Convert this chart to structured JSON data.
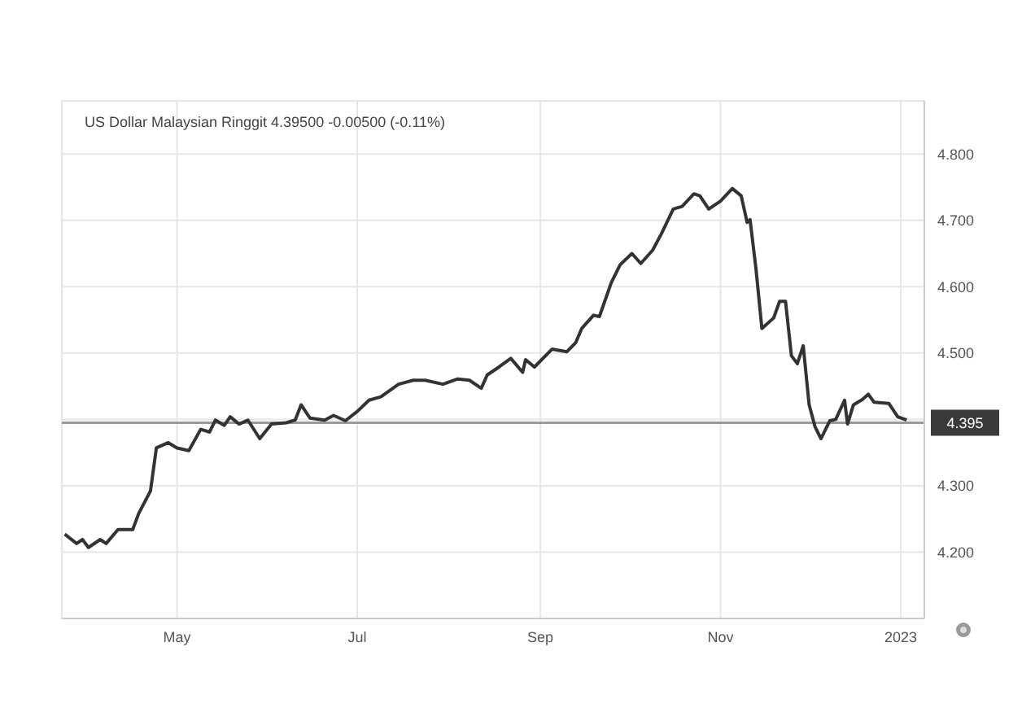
{
  "chart_data": {
    "type": "line",
    "title": "US Dollar Malaysian Ringgit 4.39500  -0.00500 (-0.11%)",
    "x": [
      "2022-03-24",
      "2022-03-28",
      "2022-03-30",
      "2022-04-01",
      "2022-04-05",
      "2022-04-07",
      "2022-04-11",
      "2022-04-16",
      "2022-04-18",
      "2022-04-22",
      "2022-04-24",
      "2022-04-28",
      "2022-05-01",
      "2022-05-05",
      "2022-05-09",
      "2022-05-12",
      "2022-05-14",
      "2022-05-17",
      "2022-05-19",
      "2022-05-22",
      "2022-05-25",
      "2022-05-29",
      "2022-06-02",
      "2022-06-07",
      "2022-06-10",
      "2022-06-12",
      "2022-06-15",
      "2022-06-20",
      "2022-06-23",
      "2022-06-27",
      "2022-07-01",
      "2022-07-05",
      "2022-07-09",
      "2022-07-15",
      "2022-07-20",
      "2022-07-24",
      "2022-07-30",
      "2022-08-04",
      "2022-08-08",
      "2022-08-12",
      "2022-08-14",
      "2022-08-18",
      "2022-08-22",
      "2022-08-26",
      "2022-08-27",
      "2022-08-30",
      "2022-09-05",
      "2022-09-10",
      "2022-09-13",
      "2022-09-15",
      "2022-09-19",
      "2022-09-21",
      "2022-09-25",
      "2022-09-28",
      "2022-10-02",
      "2022-10-05",
      "2022-10-09",
      "2022-10-12",
      "2022-10-16",
      "2022-10-19",
      "2022-10-23",
      "2022-10-25",
      "2022-10-28",
      "2022-11-01",
      "2022-11-05",
      "2022-11-08",
      "2022-11-10",
      "2022-11-11",
      "2022-11-13",
      "2022-11-15",
      "2022-11-19",
      "2022-11-21",
      "2022-11-23",
      "2022-11-25",
      "2022-11-27",
      "2022-11-29",
      "2022-12-01",
      "2022-12-03",
      "2022-12-05",
      "2022-12-08",
      "2022-12-10",
      "2022-12-13",
      "2022-12-14",
      "2022-12-16",
      "2022-12-19",
      "2022-12-21",
      "2022-12-23",
      "2022-12-28",
      "2022-12-31",
      "2023-01-03"
    ],
    "series": [
      {
        "color": "#333333",
        "values": [
          4.227,
          4.213,
          4.219,
          4.207,
          4.219,
          4.213,
          4.234,
          4.234,
          4.258,
          4.292,
          4.357,
          4.365,
          4.357,
          4.353,
          4.385,
          4.381,
          4.399,
          4.391,
          4.404,
          4.393,
          4.399,
          4.371,
          4.393,
          4.395,
          4.399,
          4.422,
          4.402,
          4.399,
          4.406,
          4.398,
          4.412,
          4.429,
          4.434,
          4.453,
          4.459,
          4.459,
          4.453,
          4.461,
          4.459,
          4.447,
          4.467,
          4.479,
          4.492,
          4.471,
          4.49,
          4.479,
          4.506,
          4.502,
          4.516,
          4.537,
          4.557,
          4.555,
          4.606,
          4.633,
          4.65,
          4.635,
          4.655,
          4.68,
          4.717,
          4.721,
          4.74,
          4.737,
          4.717,
          4.729,
          4.748,
          4.737,
          4.697,
          4.701,
          4.627,
          4.537,
          4.553,
          4.578,
          4.578,
          4.496,
          4.484,
          4.511,
          4.422,
          4.389,
          4.371,
          4.398,
          4.4,
          4.429,
          4.393,
          4.422,
          4.43,
          4.438,
          4.426,
          4.424,
          4.404,
          4.399
        ]
      }
    ],
    "xlim": [
      "2022-03-23",
      "2023-01-09"
    ],
    "xticks": [
      {
        "value": "2022-05-01",
        "label": "May"
      },
      {
        "value": "2022-07-01",
        "label": "Jul"
      },
      {
        "value": "2022-09-01",
        "label": "Sep"
      },
      {
        "value": "2022-11-01",
        "label": "Nov"
      },
      {
        "value": "2023-01-01",
        "label": "2023"
      }
    ],
    "ylim": [
      4.1,
      4.88
    ],
    "yticks": [
      {
        "value": 4.2,
        "label": "4.200"
      },
      {
        "value": 4.3,
        "label": "4.300"
      },
      {
        "value": 4.4,
        "label": null
      },
      {
        "value": 4.5,
        "label": "4.500"
      },
      {
        "value": 4.6,
        "label": "4.600"
      },
      {
        "value": 4.7,
        "label": "4.700"
      },
      {
        "value": 4.8,
        "label": "4.800"
      }
    ],
    "ref_lines": [
      {
        "axis": "y",
        "value": 4.395,
        "label": "4.395",
        "color": "#999999"
      }
    ],
    "grid": true,
    "legend": false,
    "marker": "none",
    "line_style": "solid"
  }
}
